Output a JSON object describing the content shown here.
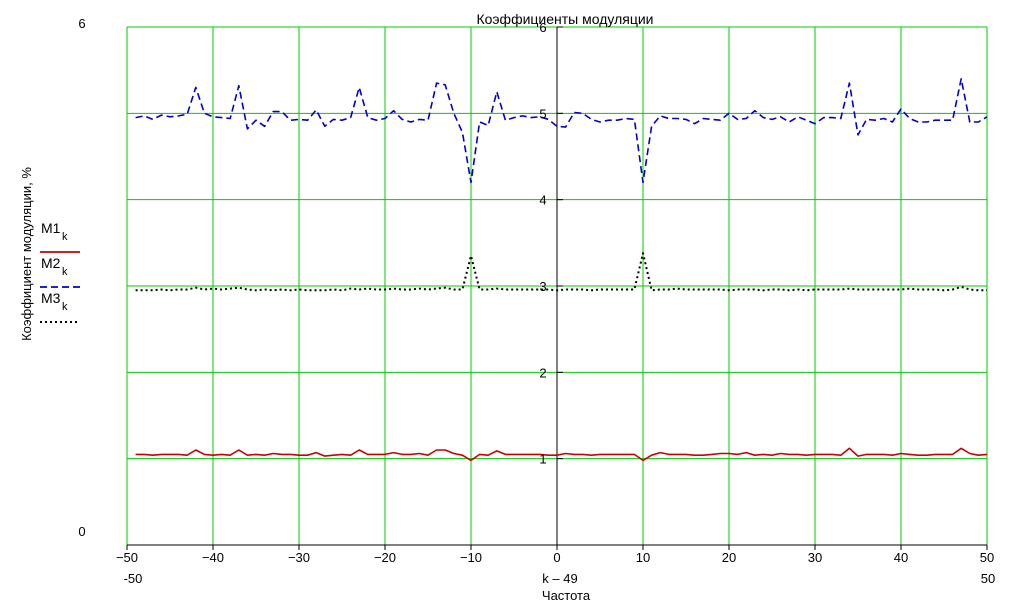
{
  "chart_data": {
    "type": "line",
    "title": "Коэффициенты модуляции",
    "xlabel": "Частота",
    "xlabel_expr": "k – 49",
    "ylabel": "Коэффициент модуляции, %",
    "xlim": [
      -50,
      50
    ],
    "ylim": [
      0,
      6
    ],
    "x_ticks": [
      "−50",
      "−40",
      "−30",
      "−20",
      "−10",
      "0",
      "10",
      "20",
      "30",
      "40",
      "50"
    ],
    "y_ticks": [
      "1",
      "2",
      "3",
      "4",
      "5",
      "6"
    ],
    "y_min_label": "0",
    "y_max_label": "6",
    "x_min_label": "-50",
    "x_max_label": "50",
    "grid": true,
    "grid_color": "#00cc00",
    "legend_position": "left",
    "x": [
      -49,
      -48,
      -47,
      -46,
      -45,
      -44,
      -43,
      -42,
      -41,
      -40,
      -39,
      -38,
      -37,
      -36,
      -35,
      -34,
      -33,
      -32,
      -31,
      -30,
      -29,
      -28,
      -27,
      -26,
      -25,
      -24,
      -23,
      -22,
      -21,
      -20,
      -19,
      -18,
      -17,
      -16,
      -15,
      -14,
      -13,
      -12,
      -11,
      -10,
      -9,
      -8,
      -7,
      -6,
      -5,
      -4,
      -3,
      -2,
      -1,
      0,
      1,
      2,
      3,
      4,
      5,
      6,
      7,
      8,
      9,
      10,
      11,
      12,
      13,
      14,
      15,
      16,
      17,
      18,
      19,
      20,
      21,
      22,
      23,
      24,
      25,
      26,
      27,
      28,
      29,
      30,
      31,
      32,
      33,
      34,
      35,
      36,
      37,
      38,
      39,
      40,
      41,
      42,
      43,
      44,
      45,
      46,
      47,
      48,
      49,
      50
    ],
    "series": [
      {
        "name": "M1",
        "sub": "k",
        "color": "#cc0000",
        "style": "solid",
        "values": [
          1.05,
          1.05,
          1.04,
          1.05,
          1.05,
          1.05,
          1.04,
          1.1,
          1.05,
          1.04,
          1.05,
          1.04,
          1.1,
          1.04,
          1.05,
          1.04,
          1.06,
          1.05,
          1.05,
          1.04,
          1.04,
          1.07,
          1.03,
          1.04,
          1.05,
          1.04,
          1.1,
          1.05,
          1.05,
          1.05,
          1.07,
          1.05,
          1.05,
          1.06,
          1.04,
          1.1,
          1.1,
          1.06,
          1.04,
          0.98,
          1.05,
          1.04,
          1.09,
          1.05,
          1.05,
          1.05,
          1.05,
          1.05,
          1.04,
          1.04,
          1.06,
          1.05,
          1.05,
          1.04,
          1.05,
          1.05,
          1.05,
          1.05,
          1.05,
          0.98,
          1.04,
          1.07,
          1.05,
          1.05,
          1.05,
          1.04,
          1.04,
          1.05,
          1.06,
          1.06,
          1.05,
          1.07,
          1.04,
          1.05,
          1.04,
          1.06,
          1.05,
          1.05,
          1.04,
          1.05,
          1.05,
          1.05,
          1.04,
          1.12,
          1.03,
          1.05,
          1.05,
          1.05,
          1.04,
          1.06,
          1.05,
          1.04,
          1.04,
          1.05,
          1.05,
          1.05,
          1.12,
          1.06,
          1.04,
          1.05
        ]
      },
      {
        "name": "M2",
        "sub": "k",
        "color": "#0000cc",
        "style": "dashed",
        "values": [
          4.95,
          4.97,
          4.93,
          4.98,
          4.96,
          4.97,
          4.99,
          5.3,
          5.0,
          4.96,
          4.95,
          4.94,
          5.32,
          4.82,
          4.92,
          4.85,
          5.02,
          5.02,
          4.92,
          4.93,
          4.92,
          5.04,
          4.85,
          4.93,
          4.92,
          4.95,
          5.3,
          4.95,
          4.92,
          4.94,
          5.03,
          4.93,
          4.9,
          4.93,
          4.92,
          5.35,
          5.33,
          5.0,
          4.78,
          4.2,
          4.9,
          4.86,
          5.25,
          4.92,
          4.95,
          4.97,
          4.95,
          4.96,
          4.93,
          4.85,
          4.84,
          5.01,
          5.0,
          4.93,
          4.9,
          4.92,
          4.92,
          4.94,
          4.93,
          4.2,
          4.85,
          4.97,
          4.94,
          4.94,
          4.93,
          4.88,
          4.94,
          4.93,
          4.92,
          5.0,
          4.93,
          4.94,
          5.03,
          4.95,
          4.93,
          4.96,
          4.9,
          4.96,
          4.92,
          4.88,
          4.95,
          4.95,
          4.94,
          5.35,
          4.75,
          4.93,
          4.92,
          4.94,
          4.9,
          5.05,
          4.94,
          4.9,
          4.9,
          4.92,
          4.92,
          4.92,
          5.4,
          4.9,
          4.9,
          4.96
        ]
      },
      {
        "name": "M3",
        "sub": "k",
        "color": "#000000",
        "style": "dotted",
        "values": [
          2.95,
          2.95,
          2.95,
          2.96,
          2.95,
          2.96,
          2.96,
          2.98,
          2.96,
          2.97,
          2.96,
          2.97,
          2.98,
          2.96,
          2.95,
          2.96,
          2.95,
          2.96,
          2.95,
          2.96,
          2.95,
          2.95,
          2.95,
          2.96,
          2.95,
          2.97,
          2.96,
          2.97,
          2.96,
          2.96,
          2.97,
          2.96,
          2.96,
          2.97,
          2.96,
          2.97,
          2.98,
          2.96,
          2.96,
          3.35,
          2.96,
          2.96,
          2.97,
          2.96,
          2.96,
          2.96,
          2.96,
          2.96,
          2.96,
          2.95,
          2.96,
          2.96,
          2.96,
          2.95,
          2.96,
          2.96,
          2.96,
          2.96,
          2.96,
          3.38,
          2.95,
          2.96,
          2.96,
          2.97,
          2.96,
          2.96,
          2.96,
          2.96,
          2.96,
          2.95,
          2.96,
          2.96,
          2.96,
          2.95,
          2.96,
          2.96,
          2.95,
          2.96,
          2.95,
          2.96,
          2.96,
          2.96,
          2.96,
          2.97,
          2.96,
          2.96,
          2.96,
          2.96,
          2.96,
          2.96,
          2.97,
          2.96,
          2.96,
          2.96,
          2.95,
          2.96,
          2.99,
          2.96,
          2.95,
          2.95
        ]
      }
    ]
  }
}
